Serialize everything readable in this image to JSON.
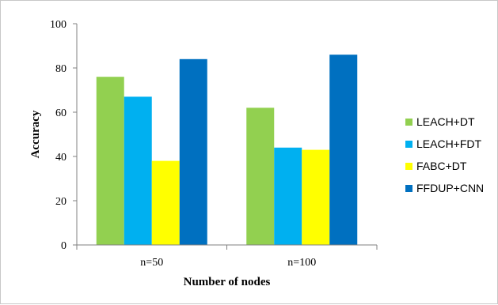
{
  "chart_data": {
    "type": "bar",
    "categories": [
      "n=50",
      "n=100"
    ],
    "series": [
      {
        "name": "LEACH+DT",
        "values": [
          76,
          62
        ],
        "color": "#92d050"
      },
      {
        "name": "LEACH+FDT",
        "values": [
          67,
          44
        ],
        "color": "#00b0f0"
      },
      {
        "name": "FABC+DT",
        "values": [
          38,
          43
        ],
        "color": "#ffff00"
      },
      {
        "name": "FFDUP+CNN",
        "values": [
          84,
          86
        ],
        "color": "#0070c0"
      }
    ],
    "title": "",
    "xlabel": "Number of nodes",
    "ylabel": "Accuracy",
    "ylim": [
      0,
      100
    ],
    "yticks": [
      0,
      20,
      40,
      60,
      80,
      100
    ],
    "grid": false,
    "legend": "right"
  }
}
